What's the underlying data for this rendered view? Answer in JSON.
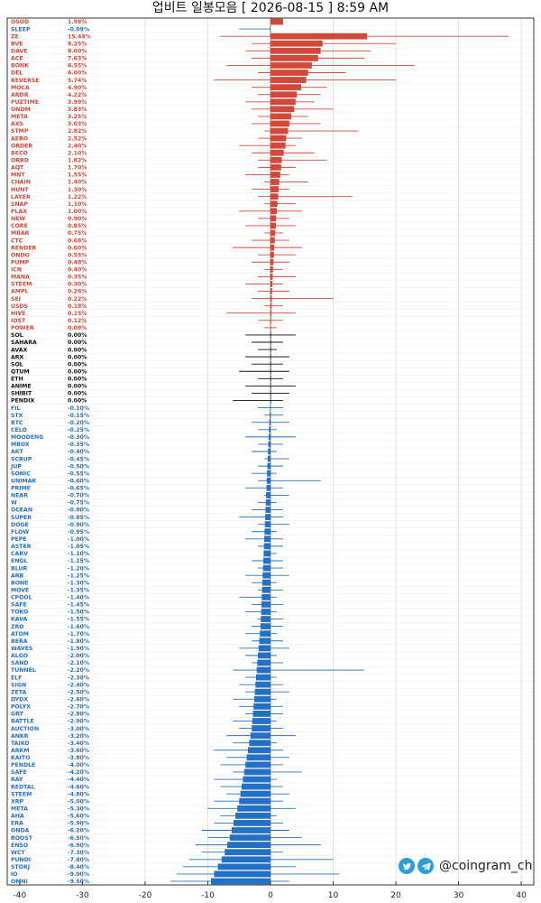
{
  "title": "업비트 일봉모음 [ 2026-08-15 ]  8:59 AM",
  "brand": {
    "handle": "@coingram_ch",
    "icons": [
      "twitter-icon",
      "telegram-icon"
    ]
  },
  "colors": {
    "up": "#d0483a",
    "flat": "#111111",
    "down": "#2370c4",
    "grid": "#d8d8d8"
  },
  "chart_data": {
    "type": "bar",
    "orientation": "horizontal",
    "title": "업비트 일봉모음 [ 2026-08-15 ]  8:59 AM",
    "xlabel": "",
    "ylabel": "",
    "xlim": [
      -42,
      42
    ],
    "xticks": [
      -40,
      -30,
      -20,
      -10,
      0,
      10,
      20,
      30,
      40
    ],
    "grid": true,
    "labels": [
      {
        "sym": "OSOD",
        "pct": "1.99%"
      },
      {
        "sym": "SLEEP",
        "pct": "-0.09%"
      },
      {
        "sym": "ZE",
        "pct": "15.44%"
      },
      {
        "sym": "BVE",
        "pct": "8.25%"
      },
      {
        "sym": "DAVE",
        "pct": "8.00%"
      },
      {
        "sym": "ACE",
        "pct": "7.63%"
      },
      {
        "sym": "BONK",
        "pct": "6.55%"
      },
      {
        "sym": "DEL",
        "pct": "6.00%"
      },
      {
        "sym": "REVERSE",
        "pct": "5.74%"
      },
      {
        "sym": "MOCA",
        "pct": "4.90%"
      },
      {
        "sym": "ARDR",
        "pct": "4.22%"
      },
      {
        "sym": "PUZTIME",
        "pct": "3.99%"
      },
      {
        "sym": "ONDM",
        "pct": "3.83%"
      },
      {
        "sym": "META",
        "pct": "3.25%"
      },
      {
        "sym": "AXS",
        "pct": "3.03%"
      },
      {
        "sym": "STMP",
        "pct": "2.82%"
      },
      {
        "sym": "AERO",
        "pct": "2.52%"
      },
      {
        "sym": "ORDER",
        "pct": "2.40%"
      },
      {
        "sym": "BECO",
        "pct": "2.10%"
      },
      {
        "sym": "ORBD",
        "pct": "1.82%"
      },
      {
        "sym": "AQT",
        "pct": "1.70%"
      },
      {
        "sym": "MNT",
        "pct": "1.55%"
      },
      {
        "sym": "CHAIN",
        "pct": "1.40%"
      },
      {
        "sym": "HUNT",
        "pct": "1.30%"
      },
      {
        "sym": "LAYER",
        "pct": "1.22%"
      },
      {
        "sym": "SNAP",
        "pct": "1.10%"
      },
      {
        "sym": "PLAX",
        "pct": "1.00%"
      },
      {
        "sym": "NEW",
        "pct": "0.90%"
      },
      {
        "sym": "CORE",
        "pct": "0.85%"
      },
      {
        "sym": "MBAR",
        "pct": "0.75%"
      },
      {
        "sym": "CTC",
        "pct": "0.68%"
      },
      {
        "sym": "RENDER",
        "pct": "0.60%"
      },
      {
        "sym": "ONDO",
        "pct": "0.55%"
      },
      {
        "sym": "PUMP",
        "pct": "0.48%"
      },
      {
        "sym": "ICN",
        "pct": "0.40%"
      },
      {
        "sym": "MANA",
        "pct": "0.35%"
      },
      {
        "sym": "STEEM",
        "pct": "0.30%"
      },
      {
        "sym": "AMPL",
        "pct": "0.26%"
      },
      {
        "sym": "SEI",
        "pct": "0.22%"
      },
      {
        "sym": "USDS",
        "pct": "0.18%"
      },
      {
        "sym": "HIVE",
        "pct": "0.15%"
      },
      {
        "sym": "IOST",
        "pct": "0.12%"
      },
      {
        "sym": "POWER",
        "pct": "0.08%"
      },
      {
        "sym": "SOL",
        "pct": "0.00%"
      },
      {
        "sym": "SAHARA",
        "pct": "0.00%"
      },
      {
        "sym": "AVAX",
        "pct": "0.00%"
      },
      {
        "sym": "ARX",
        "pct": "0.00%"
      },
      {
        "sym": "SOL",
        "pct": "0.00%"
      },
      {
        "sym": "QTUM",
        "pct": "0.00%"
      },
      {
        "sym": "ETH",
        "pct": "0.00%"
      },
      {
        "sym": "ANIME",
        "pct": "0.00%"
      },
      {
        "sym": "SHIBIT",
        "pct": "0.00%"
      },
      {
        "sym": "PENDIX",
        "pct": "0.00%"
      },
      {
        "sym": "FIL",
        "pct": "-0.10%"
      },
      {
        "sym": "STX",
        "pct": "-0.15%"
      },
      {
        "sym": "BTC",
        "pct": "-0.20%"
      },
      {
        "sym": "CELO",
        "pct": "-0.25%"
      },
      {
        "sym": "MOODENG",
        "pct": "-0.30%"
      },
      {
        "sym": "MBOX",
        "pct": "-0.35%"
      },
      {
        "sym": "AKT",
        "pct": "-0.40%"
      },
      {
        "sym": "SCRUP",
        "pct": "-0.45%"
      },
      {
        "sym": "JUP",
        "pct": "-0.50%"
      },
      {
        "sym": "SONIC",
        "pct": "-0.55%"
      },
      {
        "sym": "UNIMAK",
        "pct": "-0.60%"
      },
      {
        "sym": "PRIME",
        "pct": "-0.65%"
      },
      {
        "sym": "NEAR",
        "pct": "-0.70%"
      },
      {
        "sym": "W",
        "pct": "-0.75%"
      },
      {
        "sym": "OCEAN",
        "pct": "-0.80%"
      },
      {
        "sym": "SUPER",
        "pct": "-0.85%"
      },
      {
        "sym": "DOGE",
        "pct": "-0.90%"
      },
      {
        "sym": "FLOW",
        "pct": "-0.95%"
      },
      {
        "sym": "PEPE",
        "pct": "-1.00%"
      },
      {
        "sym": "ASTER",
        "pct": "-1.05%"
      },
      {
        "sym": "CARV",
        "pct": "-1.10%"
      },
      {
        "sym": "ENGL",
        "pct": "-1.15%"
      },
      {
        "sym": "BLUR",
        "pct": "-1.20%"
      },
      {
        "sym": "ARB",
        "pct": "-1.25%"
      },
      {
        "sym": "BONE",
        "pct": "-1.30%"
      },
      {
        "sym": "MOVE",
        "pct": "-1.35%"
      },
      {
        "sym": "CPOOL",
        "pct": "-1.40%"
      },
      {
        "sym": "SAFE",
        "pct": "-1.45%"
      },
      {
        "sym": "TOKO",
        "pct": "-1.50%"
      },
      {
        "sym": "KAVA",
        "pct": "-1.55%"
      },
      {
        "sym": "ZRO",
        "pct": "-1.60%"
      },
      {
        "sym": "ATOM",
        "pct": "-1.70%"
      },
      {
        "sym": "BERA",
        "pct": "-1.80%"
      },
      {
        "sym": "WAVES",
        "pct": "-1.90%"
      },
      {
        "sym": "ALGO",
        "pct": "-2.00%"
      },
      {
        "sym": "SAND",
        "pct": "-2.10%"
      },
      {
        "sym": "TUNNEL",
        "pct": "-2.20%"
      },
      {
        "sym": "ELF",
        "pct": "-2.30%"
      },
      {
        "sym": "SIGN",
        "pct": "-2.40%"
      },
      {
        "sym": "ZETA",
        "pct": "-2.50%"
      },
      {
        "sym": "DYDX",
        "pct": "-2.60%"
      },
      {
        "sym": "POLYX",
        "pct": "-2.70%"
      },
      {
        "sym": "GRT",
        "pct": "-2.80%"
      },
      {
        "sym": "BATTLE",
        "pct": "-2.90%"
      },
      {
        "sym": "AUCTION",
        "pct": "-3.00%"
      },
      {
        "sym": "ANKR",
        "pct": "-3.20%"
      },
      {
        "sym": "TAIKO",
        "pct": "-3.40%"
      },
      {
        "sym": "ARKM",
        "pct": "-3.60%"
      },
      {
        "sym": "KAITO",
        "pct": "-3.80%"
      },
      {
        "sym": "PENDLE",
        "pct": "-4.00%"
      },
      {
        "sym": "SAFE",
        "pct": "-4.20%"
      },
      {
        "sym": "RAY",
        "pct": "-4.40%"
      },
      {
        "sym": "REDTAL",
        "pct": "-4.60%"
      },
      {
        "sym": "STEEM",
        "pct": "-4.80%"
      },
      {
        "sym": "XRP",
        "pct": "-5.00%"
      },
      {
        "sym": "META",
        "pct": "-5.30%"
      },
      {
        "sym": "AHA",
        "pct": "-5.60%"
      },
      {
        "sym": "ERA",
        "pct": "-5.90%"
      },
      {
        "sym": "ONDA",
        "pct": "-6.20%"
      },
      {
        "sym": "BOOST",
        "pct": "-6.50%"
      },
      {
        "sym": "ENSO",
        "pct": "-6.90%"
      },
      {
        "sym": "WCT",
        "pct": "-7.30%"
      },
      {
        "sym": "PUNDI",
        "pct": "-7.80%"
      },
      {
        "sym": "STORJ",
        "pct": "-8.40%"
      },
      {
        "sym": "IO",
        "pct": "-9.00%"
      },
      {
        "sym": "OMNI",
        "pct": "-9.50%"
      }
    ],
    "series": [
      {
        "role": "change",
        "values": [
          2,
          -0.1,
          15.4,
          8.3,
          8.0,
          7.6,
          6.6,
          6.0,
          5.7,
          4.9,
          4.2,
          4.0,
          3.8,
          3.3,
          3.0,
          2.8,
          2.5,
          2.4,
          2.1,
          1.8,
          1.7,
          1.55,
          1.4,
          1.3,
          1.22,
          1.1,
          1.0,
          0.9,
          0.85,
          0.75,
          0.68,
          0.6,
          0.55,
          0.48,
          0.4,
          0.35,
          0.3,
          0.26,
          0.22,
          0.18,
          0.15,
          0.12,
          0.08,
          0,
          0,
          0,
          0,
          0,
          0,
          0,
          0,
          0,
          0,
          -0.1,
          -0.15,
          -0.2,
          -0.25,
          -0.3,
          -0.35,
          -0.4,
          -0.45,
          -0.5,
          -0.55,
          -0.6,
          -0.65,
          -0.7,
          -0.75,
          -0.8,
          -0.85,
          -0.9,
          -0.95,
          -1.0,
          -1.05,
          -1.1,
          -1.15,
          -1.2,
          -1.25,
          -1.3,
          -1.35,
          -1.4,
          -1.45,
          -1.5,
          -1.55,
          -1.6,
          -1.7,
          -1.8,
          -1.9,
          -2.0,
          -2.1,
          -2.2,
          -2.3,
          -2.4,
          -2.5,
          -2.6,
          -2.7,
          -2.8,
          -2.9,
          -3.0,
          -3.2,
          -3.4,
          -3.6,
          -3.8,
          -4.0,
          -4.2,
          -4.4,
          -4.6,
          -4.8,
          -5.0,
          -5.3,
          -5.6,
          -5.9,
          -6.2,
          -6.5,
          -6.9,
          -7.3,
          -7.8,
          -8.4,
          -9.0,
          -9.5
        ]
      },
      {
        "role": "low",
        "values": [
          0,
          -5,
          -8,
          -3,
          -4,
          -3,
          -7,
          -2,
          -9,
          -3,
          -2,
          -4,
          -3,
          -2,
          -3,
          -1,
          -2,
          -5,
          -3,
          -2,
          -2,
          -4,
          -1,
          -3,
          -2,
          -1,
          -5,
          -2,
          -4,
          -1,
          -3,
          -6,
          -2,
          -3,
          -1,
          -2,
          -4,
          -2,
          -3,
          -1,
          -7,
          -2,
          -1,
          -4,
          -3,
          -2,
          -4,
          -3,
          -5,
          -2,
          -4,
          -3,
          -6,
          -2,
          -1,
          -3,
          -2,
          -4,
          -2,
          -3,
          -1,
          -2,
          -3,
          -2,
          -4,
          -1,
          -2,
          -3,
          -5,
          -2,
          -3,
          -4,
          -2,
          -1,
          -3,
          -2,
          -4,
          -3,
          -2,
          -5,
          -3,
          -4,
          -2,
          -3,
          -4,
          -3,
          -5,
          -4,
          -3,
          -6,
          -4,
          -5,
          -4,
          -6,
          -5,
          -4,
          -6,
          -5,
          -7,
          -6,
          -9,
          -7,
          -8,
          -6,
          -9,
          -8,
          -7,
          -9,
          -10,
          -8,
          -9,
          -11,
          -10,
          -12,
          -11,
          -13,
          -14,
          -15,
          -16
        ]
      },
      {
        "role": "high",
        "values": [
          2,
          -0.1,
          38,
          20,
          16,
          15,
          23,
          12,
          20,
          9,
          8,
          7,
          10,
          6,
          8,
          14,
          5,
          4,
          7,
          9,
          4,
          3,
          6,
          3,
          13,
          4,
          5,
          3,
          4,
          2,
          3,
          5,
          4,
          3,
          2,
          4,
          2,
          3,
          10,
          2,
          4,
          2,
          1,
          4,
          2,
          1,
          3,
          2,
          3,
          2,
          4,
          3,
          2,
          2,
          2,
          3,
          1,
          4,
          2,
          1,
          3,
          2,
          1,
          8,
          2,
          3,
          1,
          2,
          2,
          3,
          1,
          2,
          2,
          1,
          2,
          2,
          3,
          1,
          2,
          1,
          2,
          1,
          2,
          2,
          1,
          2,
          3,
          1,
          2,
          15,
          1,
          2,
          3,
          1,
          2,
          2,
          1,
          2,
          4,
          1,
          2,
          3,
          2,
          5,
          1,
          2,
          3,
          2,
          4,
          1,
          2,
          3,
          5,
          8,
          2,
          10,
          4,
          11,
          3
        ]
      }
    ]
  }
}
